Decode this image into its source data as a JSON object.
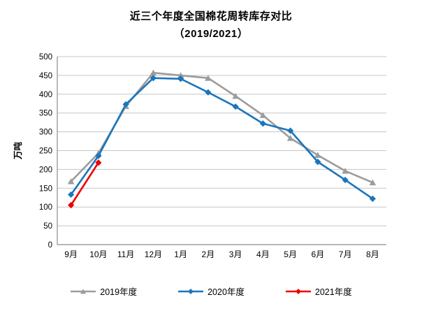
{
  "chart_data": {
    "type": "line",
    "title": "近三个年度全国棉花周转库存对比",
    "subtitle": "（2019/2021）",
    "ylabel": "万吨",
    "categories": [
      "9月",
      "10月",
      "11月",
      "12月",
      "1月",
      "2月",
      "3月",
      "4月",
      "5月",
      "6月",
      "7月",
      "8月"
    ],
    "ylim": [
      0,
      500
    ],
    "ytick_step": 50,
    "grid": true,
    "legend_position": "bottom",
    "colors": {
      "gridline": "#C6C6C6",
      "axis": "#8C8C8C",
      "series_2019": "#9C9C9C",
      "series_2020": "#1B75BB",
      "series_2021": "#EE0000"
    },
    "series": [
      {
        "name": "2019年度",
        "color": "#9C9C9C",
        "marker": "triangle",
        "values": [
          168,
          243,
          368,
          457,
          450,
          443,
          395,
          344,
          283,
          238,
          196,
          165
        ]
      },
      {
        "name": "2020年度",
        "color": "#1B75BB",
        "marker": "diamond",
        "values": [
          133,
          236,
          373,
          443,
          441,
          405,
          367,
          322,
          303,
          220,
          172,
          122
        ]
      },
      {
        "name": "2021年度",
        "color": "#EE0000",
        "marker": "diamond",
        "values": [
          105,
          218
        ]
      }
    ]
  }
}
